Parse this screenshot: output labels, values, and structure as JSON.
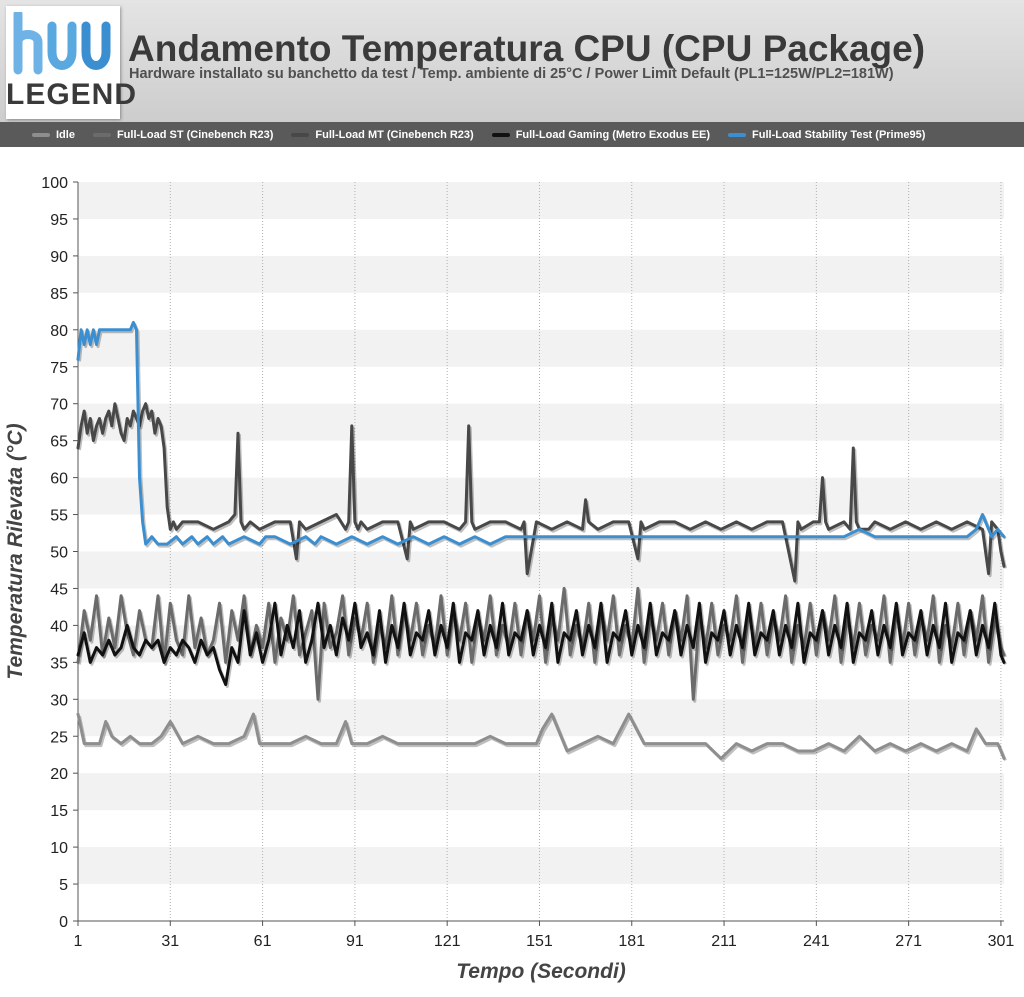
{
  "header": {
    "logo_text": "LEGEND",
    "title": "Andamento Temperatura CPU (CPU Package)",
    "subtitle": "Hardware installato su banchetto da test / Temp. ambiente di 25°C / Power Limit Default (PL1=125W/PL2=181W)"
  },
  "legend": [
    {
      "label": "Idle",
      "color": "#8e8e8e"
    },
    {
      "label": "Full-Load ST (Cinebench R23)",
      "color": "#6b6b6b"
    },
    {
      "label": "Full-Load MT (Cinebench R23)",
      "color": "#484848"
    },
    {
      "label": "Full-Load Gaming (Metro Exodus EE)",
      "color": "#111111"
    },
    {
      "label": "Full-Load Stability Test (Prime95)",
      "color": "#3b8fd0"
    }
  ],
  "chart_data": {
    "type": "line",
    "title": "Andamento Temperatura CPU (CPU Package)",
    "xlabel": "Tempo (Secondi)",
    "ylabel": "Temperatura Rilevata (°C)",
    "xlim": [
      1,
      302
    ],
    "ylim": [
      0,
      100
    ],
    "x_ticks": [
      1,
      31,
      61,
      91,
      121,
      151,
      181,
      211,
      241,
      271,
      301
    ],
    "y_ticks": [
      0,
      5,
      10,
      15,
      20,
      25,
      30,
      35,
      40,
      45,
      50,
      55,
      60,
      65,
      70,
      75,
      80,
      85,
      90,
      95,
      100
    ],
    "grid": "vertical dotted + alternating horizontal bands",
    "legend_position": "top",
    "series": [
      {
        "name": "Idle",
        "color": "#8e8e8e",
        "x": [
          1,
          3,
          5,
          8,
          10,
          12,
          15,
          18,
          21,
          25,
          28,
          31,
          35,
          40,
          45,
          50,
          55,
          58,
          60,
          65,
          70,
          75,
          80,
          85,
          88,
          90,
          95,
          100,
          105,
          110,
          115,
          120,
          125,
          130,
          135,
          140,
          145,
          150,
          152,
          155,
          160,
          165,
          170,
          175,
          180,
          185,
          190,
          195,
          200,
          205,
          210,
          215,
          220,
          225,
          230,
          235,
          240,
          245,
          250,
          255,
          260,
          265,
          270,
          275,
          280,
          285,
          290,
          293,
          296,
          300,
          302
        ],
        "y": [
          28,
          24,
          24,
          24,
          27,
          25,
          24,
          25,
          24,
          24,
          25,
          27,
          24,
          25,
          24,
          24,
          25,
          28,
          24,
          24,
          24,
          25,
          24,
          24,
          27,
          24,
          24,
          25,
          24,
          24,
          24,
          24,
          24,
          24,
          25,
          24,
          24,
          24,
          26,
          28,
          23,
          24,
          25,
          24,
          28,
          24,
          24,
          24,
          24,
          24,
          22,
          24,
          23,
          24,
          24,
          23,
          23,
          24,
          23,
          25,
          23,
          24,
          23,
          24,
          23,
          24,
          23,
          26,
          24,
          24,
          22
        ]
      },
      {
        "name": "Full-Load ST (Cinebench R23)",
        "color": "#6b6b6b",
        "x": [
          1,
          3,
          5,
          7,
          9,
          11,
          13,
          15,
          17,
          19,
          21,
          23,
          25,
          27,
          29,
          31,
          33,
          35,
          37,
          39,
          41,
          43,
          45,
          47,
          49,
          51,
          53,
          55,
          57,
          59,
          61,
          63,
          65,
          67,
          69,
          71,
          73,
          75,
          77,
          79,
          81,
          83,
          85,
          87,
          89,
          91,
          93,
          95,
          97,
          99,
          101,
          103,
          105,
          107,
          109,
          111,
          113,
          115,
          117,
          119,
          121,
          123,
          125,
          127,
          129,
          131,
          133,
          135,
          137,
          139,
          141,
          143,
          145,
          147,
          149,
          151,
          153,
          155,
          157,
          159,
          161,
          163,
          165,
          167,
          169,
          171,
          173,
          175,
          177,
          179,
          181,
          183,
          185,
          187,
          189,
          191,
          193,
          195,
          197,
          199,
          201,
          203,
          205,
          207,
          209,
          211,
          213,
          215,
          217,
          219,
          221,
          223,
          225,
          227,
          229,
          231,
          233,
          235,
          237,
          239,
          241,
          243,
          245,
          247,
          249,
          251,
          253,
          255,
          257,
          259,
          261,
          263,
          265,
          267,
          269,
          271,
          273,
          275,
          277,
          279,
          281,
          283,
          285,
          287,
          289,
          291,
          293,
          295,
          297,
          299,
          301,
          302
        ],
        "y": [
          35,
          42,
          38,
          44,
          36,
          41,
          37,
          44,
          39,
          36,
          42,
          38,
          37,
          44,
          35,
          43,
          38,
          36,
          44,
          37,
          41,
          36,
          38,
          43,
          35,
          42,
          38,
          44,
          36,
          40,
          37,
          43,
          35,
          41,
          38,
          44,
          36,
          39,
          42,
          30,
          43,
          37,
          39,
          44,
          36,
          41,
          38,
          43,
          35,
          40,
          37,
          44,
          36,
          42,
          38,
          43,
          36,
          40,
          37,
          44,
          36,
          42,
          38,
          43,
          35,
          41,
          38,
          44,
          36,
          40,
          37,
          43,
          36,
          42,
          38,
          44,
          35,
          41,
          38,
          45,
          36,
          40,
          37,
          43,
          35,
          42,
          38,
          44,
          36,
          40,
          37,
          45,
          35,
          41,
          38,
          43,
          36,
          42,
          38,
          44,
          30,
          41,
          37,
          43,
          36,
          40,
          38,
          44,
          35,
          42,
          37,
          43,
          36,
          41,
          38,
          44,
          35,
          40,
          37,
          43,
          36,
          42,
          38,
          44,
          35,
          41,
          37,
          43,
          36,
          40,
          38,
          44,
          35,
          42,
          37,
          43,
          36,
          41,
          38,
          44,
          35,
          40,
          37,
          43,
          36,
          42,
          38,
          44,
          35,
          41,
          37,
          36
        ]
      },
      {
        "name": "Full-Load MT (Cinebench R23)",
        "color": "#484848",
        "x": [
          1,
          2,
          3,
          4,
          5,
          6,
          7,
          8,
          9,
          10,
          11,
          12,
          13,
          14,
          15,
          16,
          17,
          18,
          19,
          20,
          21,
          22,
          23,
          24,
          25,
          26,
          27,
          28,
          29,
          30,
          31,
          32,
          33,
          35,
          40,
          45,
          50,
          52,
          53,
          54,
          55,
          57,
          60,
          65,
          70,
          72,
          73,
          75,
          80,
          85,
          88,
          89,
          90,
          91,
          92,
          93,
          95,
          100,
          105,
          108,
          109,
          110,
          115,
          120,
          125,
          127,
          128,
          129,
          130,
          135,
          140,
          145,
          146,
          147,
          150,
          155,
          160,
          165,
          166,
          167,
          170,
          175,
          180,
          183,
          184,
          185,
          190,
          195,
          200,
          205,
          210,
          215,
          220,
          225,
          230,
          234,
          235,
          236,
          240,
          242,
          243,
          244,
          245,
          250,
          252,
          253,
          254,
          255,
          258,
          260,
          265,
          270,
          275,
          280,
          285,
          290,
          295,
          297,
          298,
          300,
          301,
          302
        ],
        "y": [
          64,
          67,
          69,
          66,
          68,
          65,
          67,
          68,
          66,
          68,
          69,
          67,
          70,
          68,
          66,
          65,
          68,
          67,
          69,
          68,
          67,
          69,
          70,
          68,
          69,
          66,
          68,
          67,
          64,
          56,
          53,
          54,
          53,
          54,
          54,
          53,
          54,
          55,
          66,
          54,
          53,
          54,
          53,
          54,
          54,
          49,
          54,
          53,
          54,
          55,
          53,
          54,
          67,
          54,
          53,
          54,
          53,
          54,
          54,
          49,
          54,
          53,
          54,
          54,
          53,
          54,
          67,
          54,
          53,
          54,
          54,
          53,
          54,
          47,
          54,
          53,
          54,
          53,
          57,
          54,
          53,
          54,
          54,
          49,
          54,
          53,
          54,
          54,
          53,
          54,
          53,
          54,
          53,
          54,
          54,
          46,
          54,
          53,
          54,
          54,
          60,
          54,
          53,
          54,
          53,
          64,
          54,
          53,
          53,
          54,
          53,
          54,
          53,
          54,
          53,
          54,
          53,
          47,
          54,
          53,
          50,
          48
        ]
      },
      {
        "name": "Full-Load Gaming (Metro Exodus EE)",
        "color": "#111111",
        "x": [
          1,
          3,
          5,
          7,
          9,
          11,
          13,
          15,
          17,
          19,
          21,
          23,
          25,
          27,
          29,
          31,
          33,
          35,
          37,
          39,
          41,
          43,
          45,
          47,
          49,
          51,
          53,
          55,
          57,
          59,
          61,
          63,
          65,
          67,
          69,
          71,
          73,
          75,
          77,
          79,
          81,
          83,
          85,
          87,
          89,
          91,
          93,
          95,
          97,
          99,
          101,
          103,
          105,
          107,
          109,
          111,
          113,
          115,
          117,
          119,
          121,
          123,
          125,
          127,
          129,
          131,
          133,
          135,
          137,
          139,
          141,
          143,
          145,
          147,
          149,
          151,
          153,
          155,
          157,
          159,
          161,
          163,
          165,
          167,
          169,
          171,
          173,
          175,
          177,
          179,
          181,
          183,
          185,
          187,
          189,
          191,
          193,
          195,
          197,
          199,
          201,
          203,
          205,
          207,
          209,
          211,
          213,
          215,
          217,
          219,
          221,
          223,
          225,
          227,
          229,
          231,
          233,
          235,
          237,
          239,
          241,
          243,
          245,
          247,
          249,
          251,
          253,
          255,
          257,
          259,
          261,
          263,
          265,
          267,
          269,
          271,
          273,
          275,
          277,
          279,
          281,
          283,
          285,
          287,
          289,
          291,
          293,
          295,
          297,
          299,
          301,
          302
        ],
        "y": [
          36,
          39,
          35,
          37,
          36,
          38,
          36,
          37,
          40,
          37,
          36,
          38,
          37,
          38,
          35,
          37,
          36,
          38,
          37,
          35,
          38,
          36,
          37,
          34,
          32,
          37,
          35,
          42,
          36,
          39,
          35,
          38,
          43,
          36,
          40,
          37,
          42,
          35,
          38,
          43,
          37,
          40,
          36,
          41,
          38,
          43,
          37,
          39,
          36,
          42,
          35,
          40,
          37,
          43,
          36,
          39,
          38,
          42,
          36,
          40,
          37,
          43,
          35,
          39,
          38,
          42,
          36,
          40,
          37,
          43,
          36,
          39,
          38,
          42,
          36,
          40,
          37,
          43,
          35,
          39,
          38,
          42,
          36,
          40,
          37,
          43,
          35,
          39,
          38,
          42,
          36,
          40,
          37,
          43,
          36,
          39,
          38,
          42,
          36,
          40,
          37,
          43,
          35,
          39,
          38,
          42,
          36,
          40,
          37,
          43,
          36,
          39,
          38,
          42,
          36,
          40,
          37,
          43,
          35,
          39,
          38,
          42,
          36,
          40,
          37,
          43,
          35,
          39,
          38,
          42,
          36,
          40,
          37,
          43,
          36,
          39,
          38,
          42,
          36,
          40,
          37,
          43,
          35,
          39,
          38,
          42,
          36,
          40,
          37,
          43,
          36,
          35
        ]
      },
      {
        "name": "Full-Load Stability Test (Prime95)",
        "color": "#3b8fd0",
        "x": [
          1,
          2,
          3,
          4,
          5,
          6,
          7,
          8,
          9,
          10,
          11,
          12,
          13,
          14,
          15,
          16,
          17,
          18,
          19,
          20,
          21,
          22,
          23,
          25,
          27,
          30,
          33,
          35,
          38,
          40,
          43,
          45,
          48,
          50,
          55,
          60,
          62,
          65,
          70,
          75,
          78,
          80,
          85,
          90,
          95,
          100,
          105,
          110,
          115,
          120,
          125,
          130,
          135,
          140,
          145,
          150,
          155,
          160,
          165,
          170,
          175,
          180,
          185,
          190,
          195,
          200,
          205,
          210,
          215,
          220,
          225,
          230,
          235,
          240,
          245,
          250,
          255,
          260,
          265,
          270,
          275,
          280,
          285,
          290,
          293,
          295,
          298,
          300,
          302
        ],
        "y": [
          76,
          80,
          78,
          80,
          78,
          80,
          78,
          80,
          80,
          80,
          80,
          80,
          80,
          80,
          80,
          80,
          80,
          80,
          81,
          80,
          60,
          54,
          51,
          52,
          51,
          51,
          52,
          51,
          52,
          51,
          52,
          51,
          52,
          51,
          52,
          51,
          52,
          52,
          51,
          52,
          51,
          52,
          51,
          52,
          51,
          52,
          51,
          52,
          51,
          52,
          51,
          52,
          51,
          52,
          52,
          52,
          52,
          52,
          52,
          52,
          52,
          52,
          52,
          52,
          52,
          52,
          52,
          52,
          52,
          52,
          52,
          52,
          52,
          52,
          52,
          52,
          53,
          52,
          52,
          52,
          52,
          52,
          52,
          52,
          53,
          55,
          52,
          53,
          52
        ]
      }
    ]
  }
}
